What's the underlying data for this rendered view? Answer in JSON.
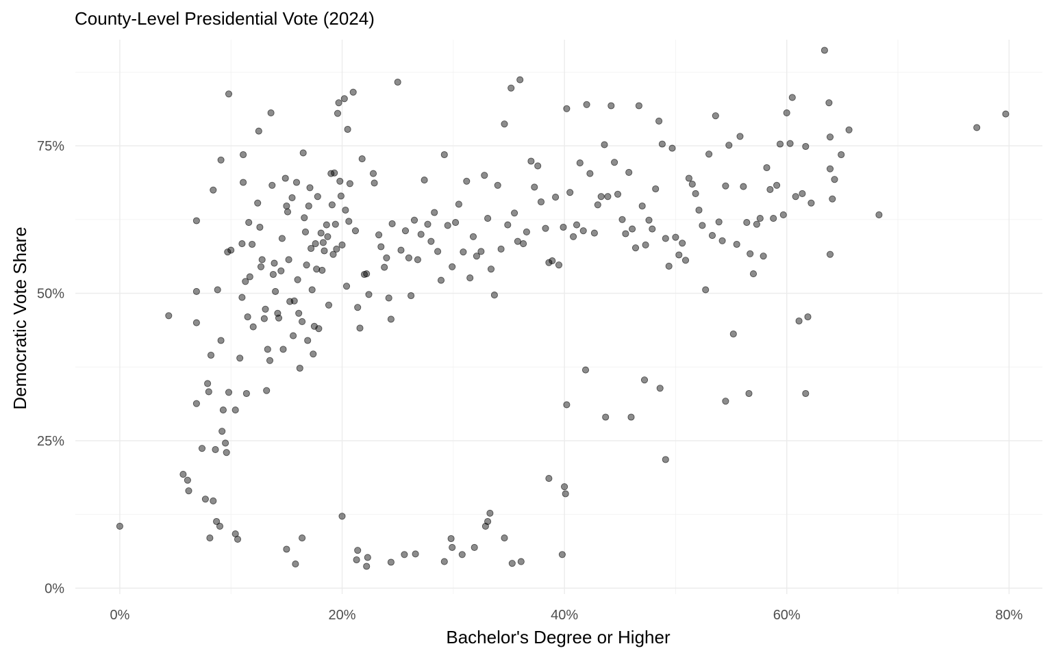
{
  "chart_data": {
    "type": "scatter",
    "title": "County-Level Presidential Vote (2024)",
    "xlabel": "Bachelor's Degree or Higher",
    "ylabel": "Democratic Vote Share",
    "xlim": [
      -0.04,
      0.83
    ],
    "ylim": [
      -0.01,
      0.93
    ],
    "x_ticks": [
      {
        "value": 0.0,
        "label": "0%"
      },
      {
        "value": 0.2,
        "label": "20%"
      },
      {
        "value": 0.4,
        "label": "40%"
      },
      {
        "value": 0.6,
        "label": "60%"
      },
      {
        "value": 0.8,
        "label": "80%"
      }
    ],
    "y_ticks": [
      {
        "value": 0.0,
        "label": "0%"
      },
      {
        "value": 0.25,
        "label": "25%"
      },
      {
        "value": 0.5,
        "label": "50%"
      },
      {
        "value": 0.75,
        "label": "75%"
      }
    ],
    "x_minor": [
      0.1,
      0.3,
      0.5,
      0.7
    ],
    "y_minor": [
      0.125,
      0.375,
      0.625,
      0.875
    ],
    "grid": true,
    "legend": "none",
    "point_color": "#000000",
    "point_alpha": 0.45,
    "points": [
      [
        0.0,
        0.105
      ],
      [
        0.044,
        0.462
      ],
      [
        0.057,
        0.193
      ],
      [
        0.061,
        0.183
      ],
      [
        0.062,
        0.165
      ],
      [
        0.069,
        0.503
      ],
      [
        0.069,
        0.45
      ],
      [
        0.069,
        0.623
      ],
      [
        0.069,
        0.313
      ],
      [
        0.074,
        0.237
      ],
      [
        0.077,
        0.151
      ],
      [
        0.079,
        0.347
      ],
      [
        0.08,
        0.333
      ],
      [
        0.081,
        0.085
      ],
      [
        0.082,
        0.395
      ],
      [
        0.084,
        0.675
      ],
      [
        0.084,
        0.148
      ],
      [
        0.086,
        0.235
      ],
      [
        0.087,
        0.113
      ],
      [
        0.088,
        0.506
      ],
      [
        0.09,
        0.105
      ],
      [
        0.091,
        0.726
      ],
      [
        0.091,
        0.42
      ],
      [
        0.092,
        0.266
      ],
      [
        0.093,
        0.302
      ],
      [
        0.095,
        0.246
      ],
      [
        0.096,
        0.23
      ],
      [
        0.097,
        0.57
      ],
      [
        0.098,
        0.332
      ],
      [
        0.098,
        0.838
      ],
      [
        0.1,
        0.573
      ],
      [
        0.104,
        0.302
      ],
      [
        0.104,
        0.092
      ],
      [
        0.106,
        0.083
      ],
      [
        0.108,
        0.39
      ],
      [
        0.11,
        0.493
      ],
      [
        0.11,
        0.584
      ],
      [
        0.111,
        0.735
      ],
      [
        0.111,
        0.688
      ],
      [
        0.113,
        0.52
      ],
      [
        0.114,
        0.33
      ],
      [
        0.115,
        0.46
      ],
      [
        0.116,
        0.62
      ],
      [
        0.117,
        0.528
      ],
      [
        0.119,
        0.583
      ],
      [
        0.12,
        0.443
      ],
      [
        0.124,
        0.653
      ],
      [
        0.125,
        0.775
      ],
      [
        0.126,
        0.612
      ],
      [
        0.127,
        0.545
      ],
      [
        0.128,
        0.557
      ],
      [
        0.13,
        0.457
      ],
      [
        0.131,
        0.473
      ],
      [
        0.132,
        0.335
      ],
      [
        0.133,
        0.405
      ],
      [
        0.135,
        0.386
      ],
      [
        0.136,
        0.806
      ],
      [
        0.137,
        0.683
      ],
      [
        0.138,
        0.532
      ],
      [
        0.139,
        0.551
      ],
      [
        0.14,
        0.503
      ],
      [
        0.142,
        0.466
      ],
      [
        0.143,
        0.458
      ],
      [
        0.145,
        0.538
      ],
      [
        0.146,
        0.593
      ],
      [
        0.147,
        0.405
      ],
      [
        0.149,
        0.695
      ],
      [
        0.15,
        0.648
      ],
      [
        0.151,
        0.638
      ],
      [
        0.152,
        0.557
      ],
      [
        0.153,
        0.486
      ],
      [
        0.155,
        0.662
      ],
      [
        0.156,
        0.428
      ],
      [
        0.157,
        0.487
      ],
      [
        0.158,
        0.041
      ],
      [
        0.159,
        0.688
      ],
      [
        0.16,
        0.523
      ],
      [
        0.161,
        0.466
      ],
      [
        0.162,
        0.373
      ],
      [
        0.164,
        0.452
      ],
      [
        0.165,
        0.738
      ],
      [
        0.166,
        0.628
      ],
      [
        0.167,
        0.604
      ],
      [
        0.168,
        0.548
      ],
      [
        0.169,
        0.42
      ],
      [
        0.17,
        0.648
      ],
      [
        0.171,
        0.679
      ],
      [
        0.172,
        0.576
      ],
      [
        0.173,
        0.506
      ],
      [
        0.174,
        0.397
      ],
      [
        0.175,
        0.444
      ],
      [
        0.176,
        0.584
      ],
      [
        0.177,
        0.541
      ],
      [
        0.178,
        0.664
      ],
      [
        0.179,
        0.44
      ],
      [
        0.181,
        0.602
      ],
      [
        0.182,
        0.539
      ],
      [
        0.183,
        0.586
      ],
      [
        0.184,
        0.572
      ],
      [
        0.186,
        0.616
      ],
      [
        0.187,
        0.596
      ],
      [
        0.188,
        0.48
      ],
      [
        0.19,
        0.703
      ],
      [
        0.191,
        0.65
      ],
      [
        0.192,
        0.566
      ],
      [
        0.193,
        0.704
      ],
      [
        0.194,
        0.617
      ],
      [
        0.195,
        0.575
      ],
      [
        0.196,
        0.805
      ],
      [
        0.197,
        0.823
      ],
      [
        0.198,
        0.69
      ],
      [
        0.199,
        0.665
      ],
      [
        0.2,
        0.582
      ],
      [
        0.202,
        0.83
      ],
      [
        0.203,
        0.641
      ],
      [
        0.204,
        0.512
      ],
      [
        0.205,
        0.778
      ],
      [
        0.206,
        0.622
      ],
      [
        0.207,
        0.686
      ],
      [
        0.21,
        0.841
      ],
      [
        0.212,
        0.606
      ],
      [
        0.214,
        0.476
      ],
      [
        0.216,
        0.441
      ],
      [
        0.218,
        0.728
      ],
      [
        0.22,
        0.532
      ],
      [
        0.222,
        0.533
      ],
      [
        0.224,
        0.498
      ],
      [
        0.228,
        0.703
      ],
      [
        0.229,
        0.687
      ],
      [
        0.233,
        0.599
      ],
      [
        0.235,
        0.579
      ],
      [
        0.238,
        0.544
      ],
      [
        0.24,
        0.56
      ],
      [
        0.242,
        0.492
      ],
      [
        0.244,
        0.456
      ],
      [
        0.245,
        0.618
      ],
      [
        0.25,
        0.858
      ],
      [
        0.253,
        0.573
      ],
      [
        0.257,
        0.606
      ],
      [
        0.26,
        0.56
      ],
      [
        0.262,
        0.496
      ],
      [
        0.265,
        0.624
      ],
      [
        0.268,
        0.557
      ],
      [
        0.271,
        0.6
      ],
      [
        0.274,
        0.692
      ],
      [
        0.277,
        0.617
      ],
      [
        0.28,
        0.588
      ],
      [
        0.283,
        0.637
      ],
      [
        0.286,
        0.571
      ],
      [
        0.289,
        0.522
      ],
      [
        0.292,
        0.735
      ],
      [
        0.295,
        0.615
      ],
      [
        0.299,
        0.545
      ],
      [
        0.302,
        0.62
      ],
      [
        0.305,
        0.651
      ],
      [
        0.309,
        0.57
      ],
      [
        0.312,
        0.69
      ],
      [
        0.315,
        0.526
      ],
      [
        0.318,
        0.596
      ],
      [
        0.321,
        0.563
      ],
      [
        0.325,
        0.571
      ],
      [
        0.328,
        0.7
      ],
      [
        0.331,
        0.627
      ],
      [
        0.334,
        0.541
      ],
      [
        0.337,
        0.497
      ],
      [
        0.34,
        0.683
      ],
      [
        0.343,
        0.575
      ],
      [
        0.346,
        0.787
      ],
      [
        0.349,
        0.616
      ],
      [
        0.352,
        0.848
      ],
      [
        0.355,
        0.636
      ],
      [
        0.358,
        0.588
      ],
      [
        0.36,
        0.862
      ],
      [
        0.363,
        0.584
      ],
      [
        0.366,
        0.604
      ],
      [
        0.37,
        0.724
      ],
      [
        0.373,
        0.68
      ],
      [
        0.376,
        0.716
      ],
      [
        0.379,
        0.655
      ],
      [
        0.383,
        0.61
      ],
      [
        0.386,
        0.552
      ],
      [
        0.389,
        0.555
      ],
      [
        0.392,
        0.663
      ],
      [
        0.395,
        0.548
      ],
      [
        0.399,
        0.612
      ],
      [
        0.402,
        0.813
      ],
      [
        0.405,
        0.671
      ],
      [
        0.408,
        0.596
      ],
      [
        0.411,
        0.616
      ],
      [
        0.414,
        0.721
      ],
      [
        0.417,
        0.606
      ],
      [
        0.42,
        0.82
      ],
      [
        0.423,
        0.703
      ],
      [
        0.427,
        0.602
      ],
      [
        0.43,
        0.65
      ],
      [
        0.433,
        0.664
      ],
      [
        0.436,
        0.752
      ],
      [
        0.439,
        0.664
      ],
      [
        0.442,
        0.818
      ],
      [
        0.445,
        0.722
      ],
      [
        0.448,
        0.668
      ],
      [
        0.452,
        0.625
      ],
      [
        0.455,
        0.601
      ],
      [
        0.458,
        0.705
      ],
      [
        0.461,
        0.609
      ],
      [
        0.464,
        0.577
      ],
      [
        0.467,
        0.818
      ],
      [
        0.47,
        0.648
      ],
      [
        0.473,
        0.582
      ],
      [
        0.476,
        0.624
      ],
      [
        0.479,
        0.609
      ],
      [
        0.482,
        0.677
      ],
      [
        0.485,
        0.792
      ],
      [
        0.488,
        0.753
      ],
      [
        0.491,
        0.593
      ],
      [
        0.494,
        0.546
      ],
      [
        0.497,
        0.746
      ],
      [
        0.5,
        0.595
      ],
      [
        0.503,
        0.565
      ],
      [
        0.506,
        0.585
      ],
      [
        0.509,
        0.556
      ],
      [
        0.512,
        0.695
      ],
      [
        0.515,
        0.685
      ],
      [
        0.518,
        0.669
      ],
      [
        0.521,
        0.641
      ],
      [
        0.524,
        0.615
      ],
      [
        0.527,
        0.506
      ],
      [
        0.53,
        0.736
      ],
      [
        0.533,
        0.598
      ],
      [
        0.536,
        0.801
      ],
      [
        0.539,
        0.621
      ],
      [
        0.542,
        0.589
      ],
      [
        0.545,
        0.682
      ],
      [
        0.548,
        0.751
      ],
      [
        0.552,
        0.431
      ],
      [
        0.555,
        0.583
      ],
      [
        0.558,
        0.766
      ],
      [
        0.561,
        0.681
      ],
      [
        0.564,
        0.62
      ],
      [
        0.567,
        0.567
      ],
      [
        0.57,
        0.533
      ],
      [
        0.573,
        0.617
      ],
      [
        0.576,
        0.627
      ],
      [
        0.579,
        0.563
      ],
      [
        0.582,
        0.713
      ],
      [
        0.585,
        0.676
      ],
      [
        0.588,
        0.627
      ],
      [
        0.591,
        0.683
      ],
      [
        0.594,
        0.753
      ],
      [
        0.597,
        0.633
      ],
      [
        0.6,
        0.806
      ],
      [
        0.603,
        0.754
      ],
      [
        0.605,
        0.832
      ],
      [
        0.608,
        0.664
      ],
      [
        0.611,
        0.453
      ],
      [
        0.614,
        0.669
      ],
      [
        0.617,
        0.749
      ],
      [
        0.619,
        0.46
      ],
      [
        0.622,
        0.653
      ],
      [
        0.634,
        0.912
      ],
      [
        0.638,
        0.823
      ],
      [
        0.639,
        0.765
      ],
      [
        0.639,
        0.711
      ],
      [
        0.639,
        0.566
      ],
      [
        0.641,
        0.66
      ],
      [
        0.643,
        0.693
      ],
      [
        0.649,
        0.735
      ],
      [
        0.656,
        0.777
      ],
      [
        0.683,
        0.633
      ],
      [
        0.771,
        0.781
      ],
      [
        0.797,
        0.804
      ],
      [
        0.617,
        0.33
      ],
      [
        0.566,
        0.33
      ],
      [
        0.545,
        0.317
      ],
      [
        0.491,
        0.218
      ],
      [
        0.486,
        0.339
      ],
      [
        0.472,
        0.353
      ],
      [
        0.46,
        0.29
      ],
      [
        0.437,
        0.29
      ],
      [
        0.419,
        0.37
      ],
      [
        0.402,
        0.311
      ],
      [
        0.401,
        0.16
      ],
      [
        0.4,
        0.172
      ],
      [
        0.398,
        0.057
      ],
      [
        0.386,
        0.186
      ],
      [
        0.361,
        0.045
      ],
      [
        0.353,
        0.042
      ],
      [
        0.346,
        0.085
      ],
      [
        0.333,
        0.127
      ],
      [
        0.331,
        0.113
      ],
      [
        0.329,
        0.105
      ],
      [
        0.319,
        0.069
      ],
      [
        0.308,
        0.057
      ],
      [
        0.299,
        0.069
      ],
      [
        0.298,
        0.084
      ],
      [
        0.292,
        0.045
      ],
      [
        0.266,
        0.058
      ],
      [
        0.256,
        0.057
      ],
      [
        0.244,
        0.044
      ],
      [
        0.223,
        0.052
      ],
      [
        0.222,
        0.037
      ],
      [
        0.214,
        0.064
      ],
      [
        0.213,
        0.048
      ],
      [
        0.2,
        0.122
      ],
      [
        0.164,
        0.085
      ],
      [
        0.15,
        0.066
      ]
    ]
  }
}
